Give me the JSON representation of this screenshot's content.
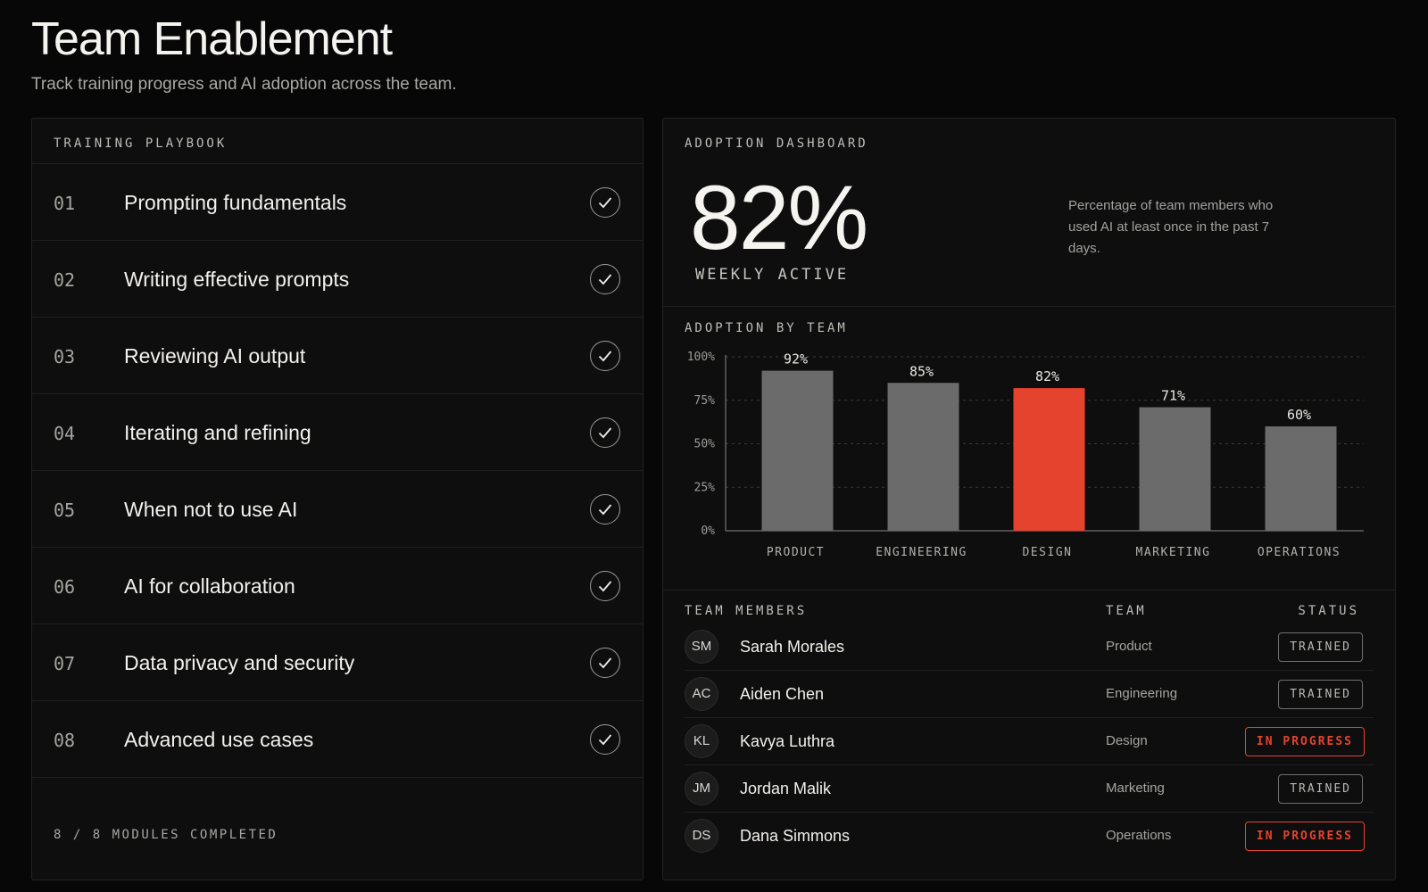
{
  "header": {
    "title": "Team Enablement",
    "subtitle": "Track training progress and AI adoption across the team."
  },
  "playbook": {
    "label": "TRAINING PLAYBOOK",
    "modules": [
      {
        "num": "01",
        "title": "Prompting fundamentals",
        "completed": true
      },
      {
        "num": "02",
        "title": "Writing effective prompts",
        "completed": true
      },
      {
        "num": "03",
        "title": "Reviewing AI output",
        "completed": true
      },
      {
        "num": "04",
        "title": "Iterating and refining",
        "completed": true
      },
      {
        "num": "05",
        "title": "When not to use AI",
        "completed": true
      },
      {
        "num": "06",
        "title": "AI for collaboration",
        "completed": true
      },
      {
        "num": "07",
        "title": "Data privacy and security",
        "completed": true
      },
      {
        "num": "08",
        "title": "Advanced use cases",
        "completed": true
      }
    ],
    "footer": "8 / 8 MODULES COMPLETED"
  },
  "dashboard": {
    "label": "ADOPTION DASHBOARD",
    "stat_value": "82%",
    "stat_label": "WEEKLY ACTIVE",
    "stat_description": "Percentage of team members who used AI at least once in the past 7 days."
  },
  "chart_data": {
    "type": "bar",
    "title": "ADOPTION BY TEAM",
    "categories": [
      "PRODUCT",
      "ENGINEERING",
      "DESIGN",
      "MARKETING",
      "OPERATIONS"
    ],
    "values": [
      92,
      85,
      82,
      71,
      60
    ],
    "data_labels": [
      "92%",
      "85%",
      "82%",
      "71%",
      "60%"
    ],
    "highlight": "DESIGN",
    "ylim": [
      0,
      100
    ],
    "yticks": [
      0,
      25,
      50,
      75,
      100
    ],
    "ytick_labels": [
      "0%",
      "25%",
      "50%",
      "75%",
      "100%"
    ],
    "grid": true,
    "colors": {
      "bar": "#6b6b6b",
      "highlight": "#e5432e"
    }
  },
  "members": {
    "label": "TEAM MEMBERS",
    "team_header": "TEAM",
    "status_header": "STATUS",
    "rows": [
      {
        "initials": "SM",
        "name": "Sarah Morales",
        "team": "Product",
        "status": "TRAINED"
      },
      {
        "initials": "AC",
        "name": "Aiden Chen",
        "team": "Engineering",
        "status": "TRAINED"
      },
      {
        "initials": "KL",
        "name": "Kavya Luthra",
        "team": "Design",
        "status": "IN PROGRESS"
      },
      {
        "initials": "JM",
        "name": "Jordan Malik",
        "team": "Marketing",
        "status": "TRAINED"
      },
      {
        "initials": "DS",
        "name": "Dana Simmons",
        "team": "Operations",
        "status": "IN PROGRESS"
      }
    ]
  },
  "colors": {
    "background": "#070707",
    "panel": "#0e0e0e",
    "accent": "#e5432e"
  }
}
